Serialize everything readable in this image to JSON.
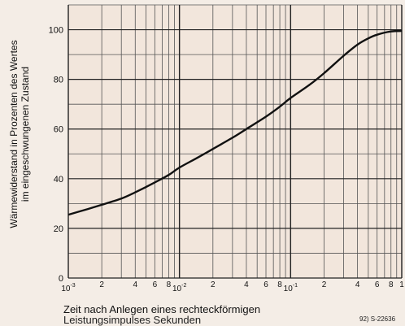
{
  "chart_data": {
    "type": "line",
    "title": "",
    "xlabel_line1": "Zeit nach Anlegen eines rechteckförmigen",
    "xlabel_line2": "Leistungsimpulses   Sekunden",
    "ylabel_line1": "Wärmewiderstand in Prozenten des Wertes",
    "ylabel_line2": "im eingeschwungenen Zustand",
    "x_scale": "log",
    "xlim": [
      0.001,
      1
    ],
    "ylim": [
      0,
      110
    ],
    "grid": true,
    "y_ticks": [
      "0",
      "20",
      "40",
      "60",
      "80",
      "100"
    ],
    "x_ticks": [
      {
        "value": 0.001,
        "label": "10",
        "exp": "-3"
      },
      {
        "value": 0.002,
        "label": "2",
        "exp": ""
      },
      {
        "value": 0.004,
        "label": "4",
        "exp": ""
      },
      {
        "value": 0.006,
        "label": "6",
        "exp": ""
      },
      {
        "value": 0.008,
        "label": "8",
        "exp": ""
      },
      {
        "value": 0.01,
        "label": "10",
        "exp": "-2"
      },
      {
        "value": 0.02,
        "label": "2",
        "exp": ""
      },
      {
        "value": 0.04,
        "label": "4",
        "exp": ""
      },
      {
        "value": 0.06,
        "label": "6",
        "exp": ""
      },
      {
        "value": 0.08,
        "label": "8",
        "exp": ""
      },
      {
        "value": 0.1,
        "label": "10",
        "exp": "-1"
      },
      {
        "value": 0.2,
        "label": "2",
        "exp": ""
      },
      {
        "value": 0.4,
        "label": "4",
        "exp": ""
      },
      {
        "value": 0.6,
        "label": "6",
        "exp": ""
      },
      {
        "value": 0.8,
        "label": "8",
        "exp": ""
      },
      {
        "value": 1,
        "label": "1",
        "exp": ""
      }
    ],
    "series": [
      {
        "x": [
          0.001,
          0.0015,
          0.002,
          0.003,
          0.004,
          0.006,
          0.008,
          0.01,
          0.015,
          0.02,
          0.03,
          0.04,
          0.06,
          0.08,
          0.1,
          0.15,
          0.2,
          0.3,
          0.4,
          0.5,
          0.6,
          0.8,
          1
        ],
        "y": [
          25.5,
          27.8,
          29.5,
          32,
          34.5,
          38.5,
          41.5,
          44.5,
          48.8,
          52,
          56.5,
          60,
          65,
          69,
          72.5,
          78,
          82.5,
          89.5,
          94,
          96.5,
          98,
          99.3,
          99.5
        ]
      }
    ]
  },
  "figure_id": "92) S-22636"
}
